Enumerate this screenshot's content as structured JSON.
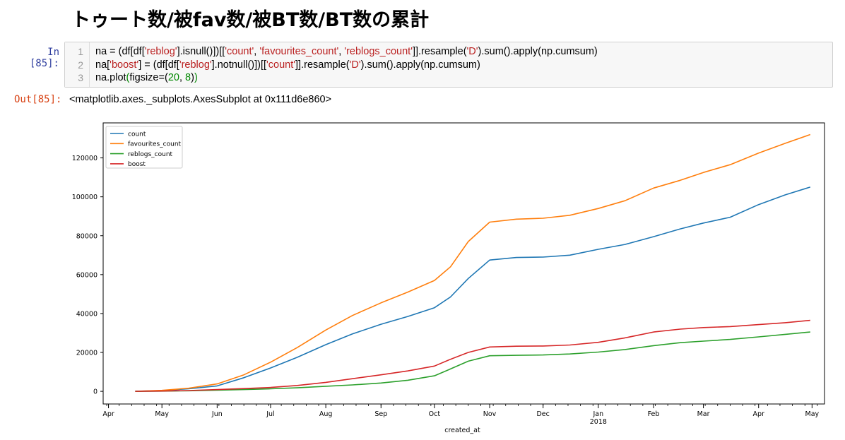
{
  "heading": "トゥート数/被fav数/被BT数/BT数の累計",
  "input_cell": {
    "prompt": "In [85]:",
    "lines": [
      {
        "no": "1",
        "pre": "na = (df[df[",
        "s1": "'reblog'",
        "m1": "].isnull()])[[",
        "s2": "'count'",
        "m2": ", ",
        "s3": "'favourites_count'",
        "m3": ", ",
        "s4": "'reblogs_count'",
        "m4": "]].resample(",
        "s5": "'D'",
        "post": ").sum().apply(np.cumsum)"
      },
      {
        "no": "2",
        "pre": "na[",
        "s1": "'boost'",
        "m1": "] = (df[df[",
        "s2": "'reblog'",
        "m2": "].notnull()])[[",
        "s3": "'count'",
        "m3": "]].resample(",
        "s4": "'D'",
        "post": ").sum().apply(np.cumsum)"
      },
      {
        "no": "3",
        "pre": "na.plot",
        "paren1": "(",
        "m1": "figsize=",
        "paren2": "(",
        "n1": "20",
        "m2": ", ",
        "n2": "8",
        "paren3": ")",
        "paren4": ")"
      }
    ]
  },
  "output_cell": {
    "prompt": "Out[85]:",
    "text": "<matplotlib.axes._subplots.AxesSubplot at 0x111d6e860>"
  },
  "chart_data": {
    "type": "line",
    "xlabel": "created_at",
    "ylabel": "",
    "ylim": [
      -6500,
      138000
    ],
    "yticks": [
      "0",
      "20000",
      "40000",
      "60000",
      "80000",
      "100000",
      "120000"
    ],
    "ytick_values": [
      0,
      20000,
      40000,
      60000,
      80000,
      100000,
      120000
    ],
    "xticks": [
      "Apr",
      "May",
      "Jun",
      "Jul",
      "Aug",
      "Sep",
      "Oct",
      "Nov",
      "Dec",
      "Jan",
      "Feb",
      "Mar",
      "Apr",
      "May"
    ],
    "xtick_year": "2018",
    "x_start": "2017-03-29",
    "x": [
      "2017-04-16",
      "2017-05-01",
      "2017-05-16",
      "2017-06-01",
      "2017-06-16",
      "2017-07-01",
      "2017-07-16",
      "2017-08-01",
      "2017-08-16",
      "2017-09-01",
      "2017-09-16",
      "2017-10-01",
      "2017-10-10",
      "2017-10-20",
      "2017-11-01",
      "2017-11-16",
      "2017-12-01",
      "2017-12-16",
      "2018-01-01",
      "2018-01-16",
      "2018-02-01",
      "2018-02-16",
      "2018-03-01",
      "2018-03-16",
      "2018-04-01",
      "2018-04-16",
      "2018-04-30"
    ],
    "legend_position": "upper left",
    "series": [
      {
        "name": "count",
        "color": "#1f77b4",
        "values": [
          0,
          400,
          1300,
          2800,
          7000,
          12000,
          17500,
          24000,
          29500,
          34500,
          38500,
          43000,
          48500,
          58000,
          67500,
          68800,
          69000,
          70000,
          73000,
          75500,
          79500,
          83500,
          86500,
          89500,
          96000,
          101000,
          105000
        ]
      },
      {
        "name": "favourites_count",
        "color": "#ff7f0e",
        "values": [
          0,
          500,
          1600,
          3800,
          8500,
          15000,
          22500,
          31500,
          39000,
          45500,
          51000,
          57000,
          64000,
          77000,
          87000,
          88500,
          89000,
          90500,
          94000,
          98000,
          104500,
          108500,
          112500,
          116500,
          122500,
          127500,
          132000
        ]
      },
      {
        "name": "reblogs_count",
        "color": "#2ca02c",
        "values": [
          0,
          100,
          300,
          600,
          900,
          1300,
          1800,
          2600,
          3300,
          4300,
          5700,
          8000,
          11500,
          15500,
          18300,
          18500,
          18700,
          19200,
          20200,
          21500,
          23500,
          25000,
          25800,
          26700,
          28000,
          29300,
          30500
        ]
      },
      {
        "name": "boost",
        "color": "#d62728",
        "values": [
          0,
          150,
          400,
          900,
          1400,
          2000,
          3000,
          4600,
          6500,
          8500,
          10500,
          13000,
          16500,
          20000,
          22800,
          23200,
          23300,
          23800,
          25200,
          27500,
          30500,
          32000,
          32800,
          33300,
          34300,
          35300,
          36500
        ]
      }
    ]
  }
}
